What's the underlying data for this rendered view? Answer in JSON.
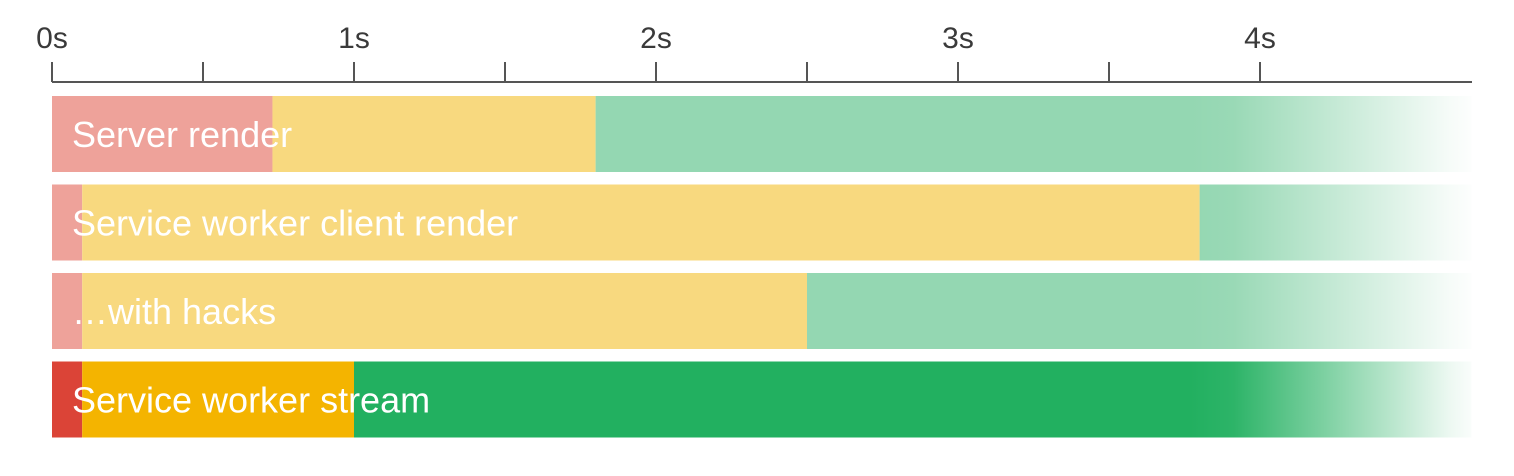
{
  "chart_data": {
    "type": "bar",
    "subtype": "horizontal-stacked-timeline",
    "x_axis": {
      "unit": "s",
      "ticks": [
        0,
        1,
        2,
        3,
        4
      ],
      "tick_labels": [
        "0s",
        "1s",
        "2s",
        "3s",
        "4s"
      ],
      "minor_ticks": [
        0.5,
        1.5,
        2.5,
        3.5
      ],
      "range": [
        0,
        4.7
      ]
    },
    "phases": [
      "blank",
      "partial",
      "complete"
    ],
    "rows": [
      {
        "label": "Server render",
        "segments": [
          {
            "phase": "blank",
            "start": 0,
            "end": 0.73,
            "color": "#eea29a"
          },
          {
            "phase": "partial",
            "start": 0.73,
            "end": 1.8,
            "color": "#f8d97f"
          },
          {
            "phase": "complete",
            "start": 1.8,
            "end": 4.7,
            "color": "#94d7b2",
            "fades_out": true
          }
        ]
      },
      {
        "label": "Service worker client render",
        "segments": [
          {
            "phase": "blank",
            "start": 0,
            "end": 0.1,
            "color": "#eea29a"
          },
          {
            "phase": "partial",
            "start": 0.1,
            "end": 3.8,
            "color": "#f8d97f"
          },
          {
            "phase": "complete",
            "start": 3.8,
            "end": 4.7,
            "color": "#94d7b2",
            "fades_out": true
          }
        ]
      },
      {
        "label": "…with hacks",
        "segments": [
          {
            "phase": "blank",
            "start": 0,
            "end": 0.1,
            "color": "#eea29a"
          },
          {
            "phase": "partial",
            "start": 0.1,
            "end": 2.5,
            "color": "#f8d97f"
          },
          {
            "phase": "complete",
            "start": 2.5,
            "end": 4.7,
            "color": "#94d7b2",
            "fades_out": true
          }
        ]
      },
      {
        "label": "Service worker stream",
        "segments": [
          {
            "phase": "blank",
            "start": 0,
            "end": 0.1,
            "color": "#db4437"
          },
          {
            "phase": "partial",
            "start": 0.1,
            "end": 1.0,
            "color": "#f4b400"
          },
          {
            "phase": "complete",
            "start": 1.0,
            "end": 4.7,
            "color": "#22b060",
            "fades_out": true
          }
        ]
      }
    ]
  }
}
